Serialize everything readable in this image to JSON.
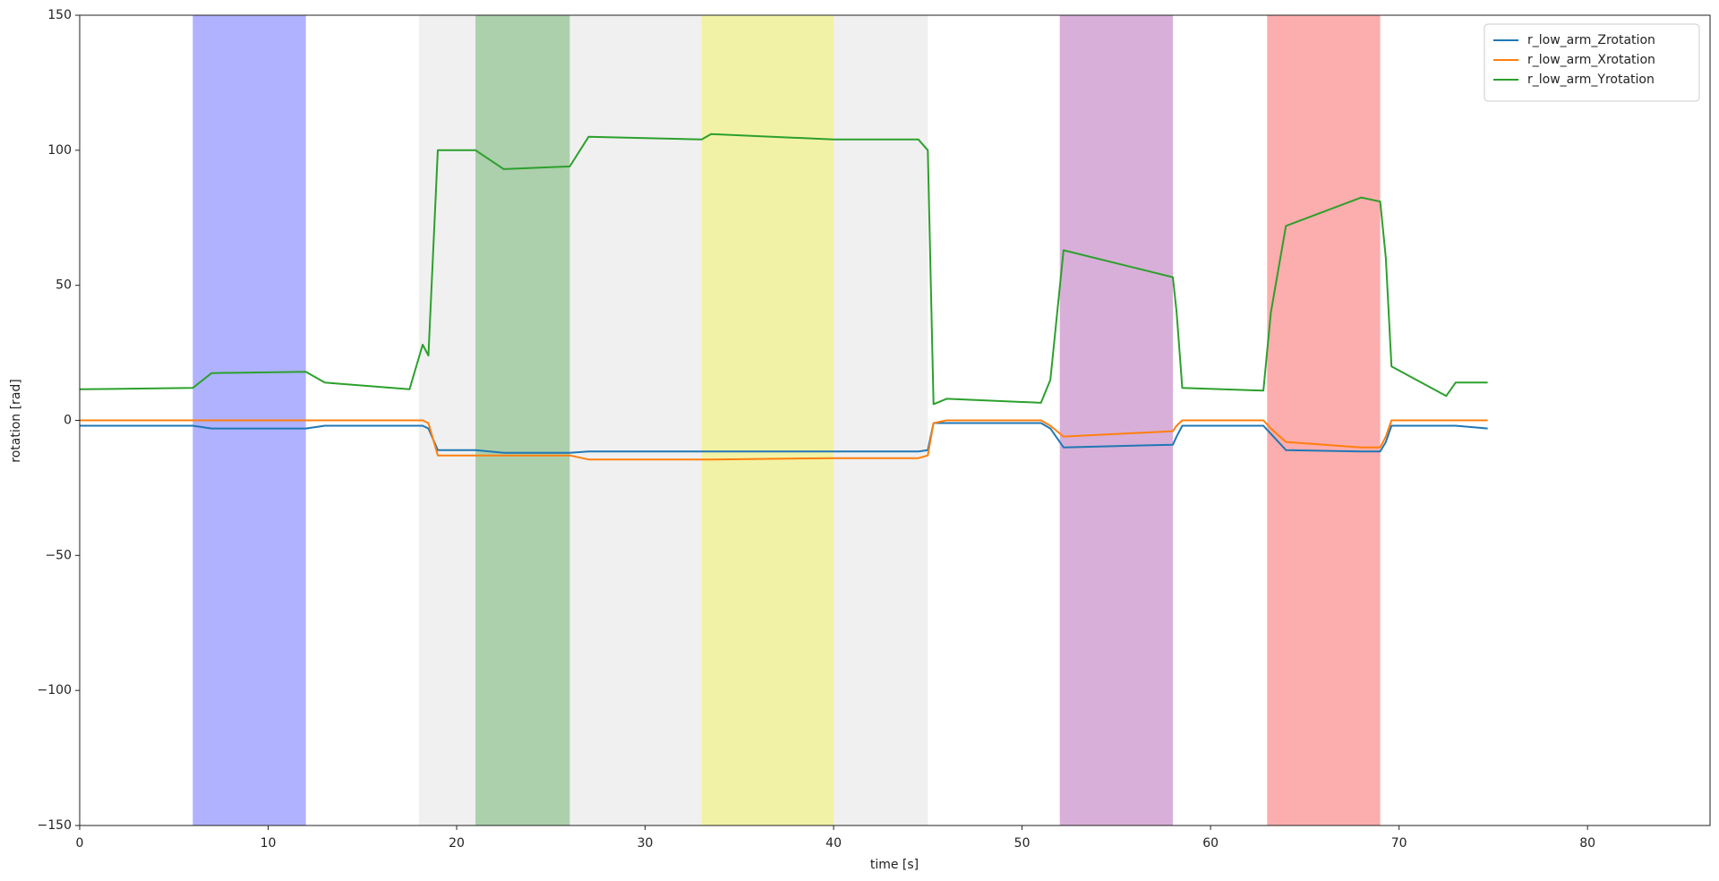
{
  "chart_data": {
    "type": "line",
    "xlabel": "time [s]",
    "ylabel": "rotation [rad]",
    "xlim": [
      0,
      86.5
    ],
    "xticks": [
      0,
      10,
      20,
      30,
      40,
      50,
      60,
      70,
      80
    ],
    "ylim": [
      -150,
      150
    ],
    "yticks": [
      {
        "value": -150,
        "label": "−150"
      },
      {
        "value": -100,
        "label": "−100"
      },
      {
        "value": -50,
        "label": "−50"
      },
      0,
      50,
      100,
      150
    ],
    "legend": "upper right",
    "spans": [
      {
        "start": 18,
        "end": 45,
        "color": "#f0f0f0"
      },
      {
        "start": 6,
        "end": 12,
        "color": "#b0b2ff"
      },
      {
        "start": 21,
        "end": 26,
        "color": "#accfac"
      },
      {
        "start": 33,
        "end": 40,
        "color": "#f2f2a6"
      },
      {
        "start": 52,
        "end": 58,
        "color": "#d8afd8"
      },
      {
        "start": 63,
        "end": 69,
        "color": "#fcadad"
      }
    ],
    "x": [
      0,
      6,
      7,
      12,
      13,
      17.5,
      18.2,
      18.5,
      19,
      21,
      22.5,
      26,
      27,
      33,
      33.5,
      40,
      44.5,
      45,
      45.3,
      46,
      51,
      51.5,
      52.2,
      58,
      58.2,
      58.5,
      62.8,
      63.2,
      64,
      68,
      69,
      69.3,
      69.6,
      72.5,
      73,
      74.7
    ],
    "series": [
      {
        "name": "r_low_arm_Zrotation",
        "color": "#1f77b4",
        "values": [
          -2,
          -2,
          -3,
          -3,
          -2,
          -2,
          -2,
          -3,
          -11,
          -11,
          -12,
          -12,
          -11.5,
          -11.5,
          -11.5,
          -11.5,
          -11.5,
          -11,
          -1,
          -1,
          -1,
          -3,
          -10,
          -9,
          -6,
          -2,
          -2,
          -5,
          -11,
          -11.5,
          -11.5,
          -8,
          -2,
          -2,
          -2,
          -3
        ]
      },
      {
        "name": "r_low_arm_Xrotation",
        "color": "#ff7f0e",
        "values": [
          0,
          0,
          0,
          0,
          0,
          0,
          0,
          -1,
          -13,
          -13,
          -13,
          -13,
          -14.5,
          -14.5,
          -14.5,
          -14,
          -14,
          -13,
          -1,
          0,
          0,
          -2,
          -6,
          -4,
          -2,
          0,
          0,
          -3,
          -8,
          -10,
          -10,
          -6,
          0,
          0,
          0,
          0
        ]
      },
      {
        "name": "r_low_arm_Yrotation",
        "color": "#2ca02c",
        "values": [
          11.5,
          12,
          17.5,
          18,
          14,
          11.5,
          28,
          24,
          100,
          100,
          93,
          94,
          105,
          104,
          106,
          104,
          104,
          100,
          6,
          8,
          6.5,
          15,
          63,
          53,
          40,
          12,
          11,
          40,
          72,
          82.5,
          81,
          60,
          20,
          9,
          14,
          14
        ]
      }
    ]
  }
}
